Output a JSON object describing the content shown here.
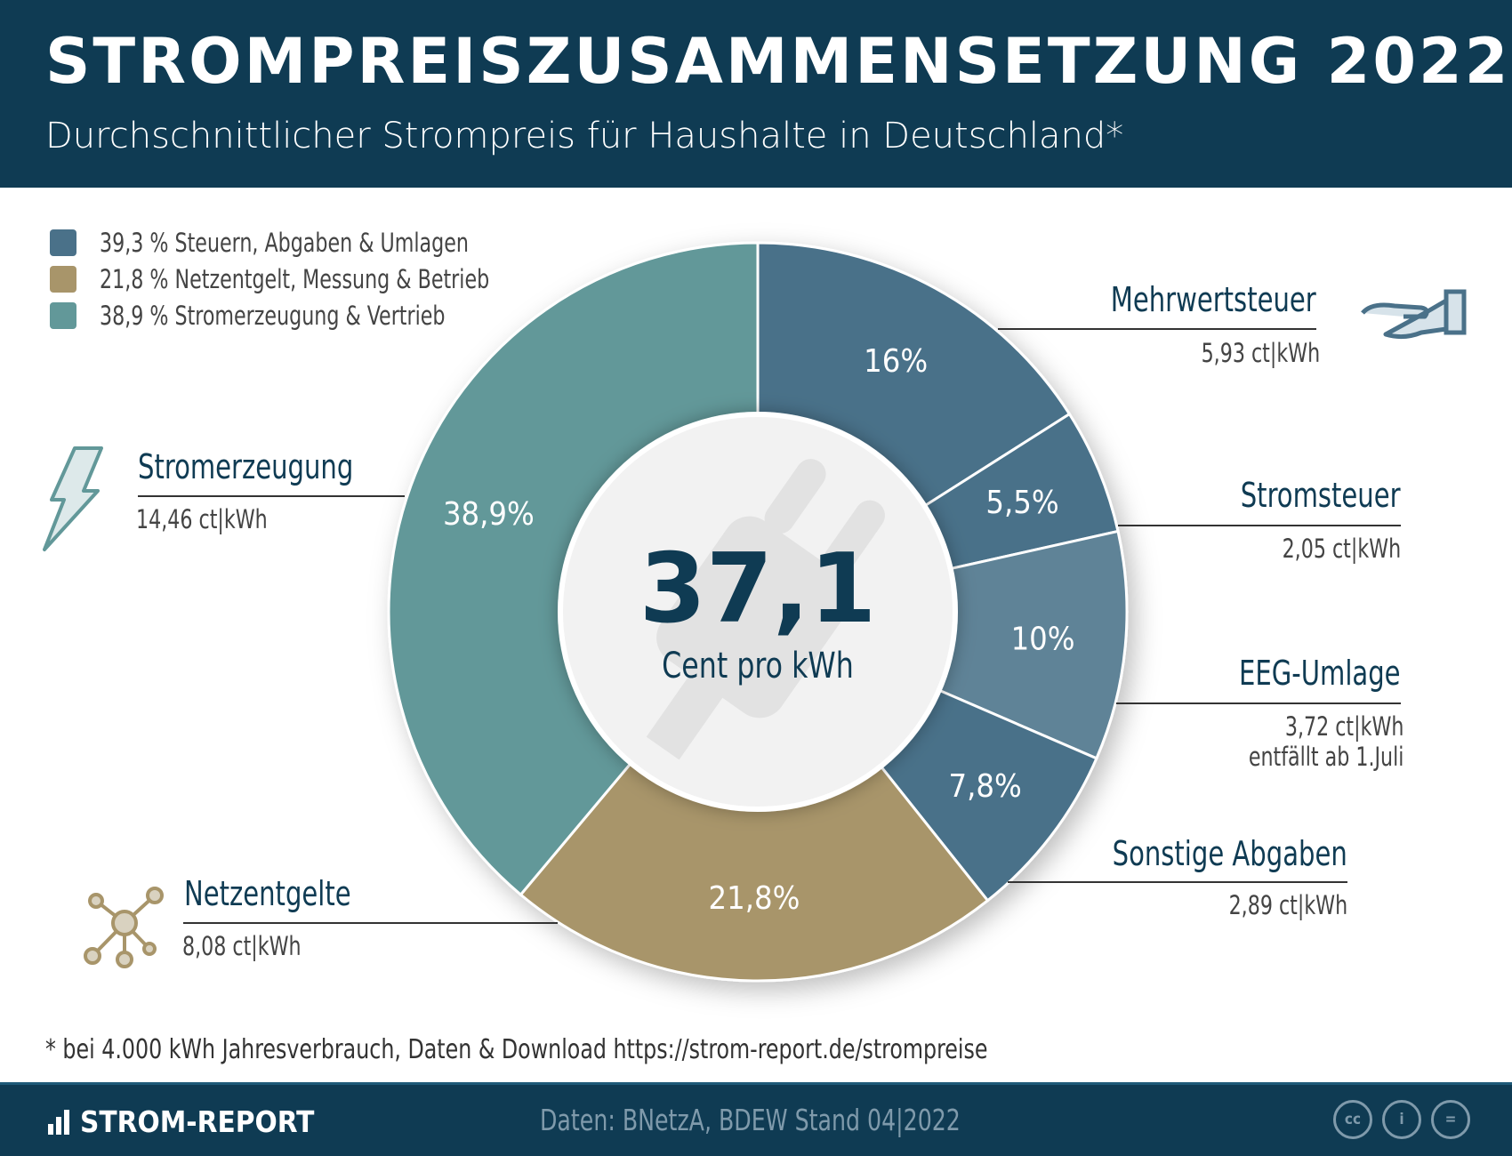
{
  "header": {
    "title": "STROMPREISZUSAMMENSETZUNG 2022",
    "subtitle": "Durchschnittlicher Strompreis für Haushalte in Deutschland*"
  },
  "legend": [
    {
      "label": "39,3 % Steuern, Abgaben & Umlagen",
      "color": "#4a7189"
    },
    {
      "label": "21,8 % Netzentgelt, Messung & Betrieb",
      "color": "#a8956a"
    },
    {
      "label": "38,9 % Stromerzeugung & Vertrieb",
      "color": "#629899"
    }
  ],
  "chart_data": {
    "type": "pie",
    "donut": true,
    "center": {
      "value": "37,1",
      "unit": "Cent pro kWh"
    },
    "slices": [
      {
        "name": "Mehrwertsteuer",
        "percent": 16,
        "label": "16%",
        "value": "5,93 ct|kWh",
        "color": "#4a7189"
      },
      {
        "name": "Stromsteuer",
        "percent": 5.5,
        "label": "5,5%",
        "value": "2,05 ct|kWh",
        "color": "#4a7189"
      },
      {
        "name": "EEG-Umlage",
        "percent": 10,
        "label": "10%",
        "value": "3,72 ct|kWh",
        "note": "entfällt ab 1.Juli",
        "color": "#5f8397"
      },
      {
        "name": "Sonstige Abgaben",
        "percent": 7.8,
        "label": "7,8%",
        "value": "2,89 ct|kWh",
        "color": "#4a7189"
      },
      {
        "name": "Netzentgelte",
        "percent": 21.8,
        "label": "21,8%",
        "value": "8,08 ct|kWh",
        "color": "#a8956a"
      },
      {
        "name": "Stromerzeugung",
        "percent": 38.9,
        "label": "38,9%",
        "value": "14,46 ct|kWh",
        "color": "#629899"
      }
    ]
  },
  "footnote": "* bei 4.000 kWh Jahresverbrauch, Daten & Download https://strom-report.de/strompreise",
  "footer": {
    "brand": "STROM-REPORT",
    "source": "Daten: BNetzA, BDEW  Stand 04|2022",
    "license_icons": [
      "cc",
      "by",
      "nd"
    ],
    "license_text": [
      "cc",
      "i",
      "="
    ]
  }
}
